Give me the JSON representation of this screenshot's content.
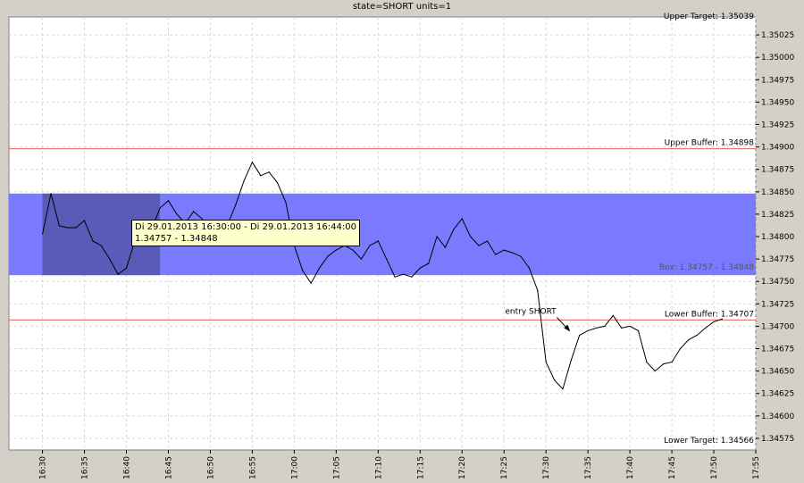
{
  "chart_data": {
    "type": "line",
    "title": "state=SHORT units=1",
    "x_ticks": [
      "16:30",
      "16:35",
      "16:40",
      "16:45",
      "16:50",
      "16:55",
      "17:00",
      "17:05",
      "17:10",
      "17:15",
      "17:20",
      "17:25",
      "17:30",
      "17:35",
      "17:40",
      "17:45",
      "17:50",
      "17:55"
    ],
    "y_ticks": [
      "1.34575",
      "1.34600",
      "1.34625",
      "1.34650",
      "1.34675",
      "1.34700",
      "1.34725",
      "1.34750",
      "1.34775",
      "1.34800",
      "1.34825",
      "1.34850",
      "1.34875",
      "1.34900",
      "1.34925",
      "1.34950",
      "1.34975",
      "1.35000",
      "1.35025"
    ],
    "xlim": [
      "16:26",
      "17:55"
    ],
    "ylim": [
      1.34562,
      1.35045
    ],
    "grid": true,
    "levels": [
      {
        "label": "Upper Target: 1.35039",
        "value": 1.35039,
        "color": "#000000"
      },
      {
        "label": "Upper Buffer: 1.34898",
        "value": 1.34898,
        "color": "#e06060"
      },
      {
        "label": "Lower Buffer: 1.34707",
        "value": 1.34707,
        "color": "#e06060"
      },
      {
        "label": "Lower Target: 1.34566",
        "value": 1.34566,
        "color": "#000000"
      }
    ],
    "box": {
      "label": "Box: 1.34757 - 1.34848",
      "low": 1.34757,
      "high": 1.34848,
      "color": "#7a7aff",
      "highlight_start": "16:30",
      "highlight_end": "16:44",
      "highlight_color": "#5a5ab8"
    },
    "tooltip": {
      "line1": "Di 29.01.2013 16:30:00 - Di 29.01.2013 16:44:00",
      "line2": "1.34757 - 1.34848"
    },
    "annotation": {
      "label": "entry SHORT",
      "x": "17:33",
      "y": 1.34692
    },
    "series": [
      {
        "color": "#000000",
        "points": [
          [
            "16:30",
            1.34803
          ],
          [
            "16:31",
            1.34848
          ],
          [
            "16:32",
            1.34812
          ],
          [
            "16:33",
            1.3481
          ],
          [
            "16:34",
            1.3481
          ],
          [
            "16:35",
            1.34818
          ],
          [
            "16:36",
            1.34795
          ],
          [
            "16:37",
            1.3479
          ],
          [
            "16:38",
            1.34775
          ],
          [
            "16:39",
            1.34758
          ],
          [
            "16:40",
            1.34765
          ],
          [
            "16:41",
            1.34795
          ],
          [
            "16:42",
            1.34815
          ],
          [
            "16:43",
            1.34808
          ],
          [
            "16:44",
            1.34832
          ],
          [
            "16:45",
            1.3484
          ],
          [
            "16:46",
            1.34825
          ],
          [
            "16:47",
            1.34815
          ],
          [
            "16:48",
            1.34828
          ],
          [
            "16:49",
            1.3482
          ],
          [
            "16:50",
            1.34805
          ],
          [
            "16:51",
            1.348
          ],
          [
            "16:52",
            1.34812
          ],
          [
            "16:53",
            1.34835
          ],
          [
            "16:54",
            1.34862
          ],
          [
            "16:55",
            1.34883
          ],
          [
            "16:56",
            1.34868
          ],
          [
            "16:57",
            1.34872
          ],
          [
            "16:58",
            1.3486
          ],
          [
            "16:59",
            1.34838
          ],
          [
            "17:00",
            1.3479
          ],
          [
            "17:01",
            1.34762
          ],
          [
            "17:02",
            1.34748
          ],
          [
            "17:03",
            1.34765
          ],
          [
            "17:04",
            1.34778
          ],
          [
            "17:05",
            1.34785
          ],
          [
            "17:06",
            1.3479
          ],
          [
            "17:07",
            1.34785
          ],
          [
            "17:08",
            1.34775
          ],
          [
            "17:09",
            1.3479
          ],
          [
            "17:10",
            1.34795
          ],
          [
            "17:11",
            1.34775
          ],
          [
            "17:12",
            1.34755
          ],
          [
            "17:13",
            1.34758
          ],
          [
            "17:14",
            1.34755
          ],
          [
            "17:15",
            1.34765
          ],
          [
            "17:16",
            1.3477
          ],
          [
            "17:17",
            1.348
          ],
          [
            "17:18",
            1.34788
          ],
          [
            "17:19",
            1.34808
          ],
          [
            "17:20",
            1.3482
          ],
          [
            "17:21",
            1.348
          ],
          [
            "17:22",
            1.3479
          ],
          [
            "17:23",
            1.34795
          ],
          [
            "17:24",
            1.3478
          ],
          [
            "17:25",
            1.34785
          ],
          [
            "17:26",
            1.34782
          ],
          [
            "17:27",
            1.34778
          ],
          [
            "17:28",
            1.34765
          ],
          [
            "17:29",
            1.3474
          ],
          [
            "17:30",
            1.3466
          ],
          [
            "17:31",
            1.3464
          ],
          [
            "17:32",
            1.3463
          ],
          [
            "17:33",
            1.34662
          ],
          [
            "17:34",
            1.3469
          ],
          [
            "17:35",
            1.34695
          ],
          [
            "17:36",
            1.34698
          ],
          [
            "17:37",
            1.347
          ],
          [
            "17:38",
            1.34712
          ],
          [
            "17:39",
            1.34698
          ],
          [
            "17:40",
            1.347
          ],
          [
            "17:41",
            1.34695
          ],
          [
            "17:42",
            1.3466
          ],
          [
            "17:43",
            1.3465
          ],
          [
            "17:44",
            1.34658
          ],
          [
            "17:45",
            1.3466
          ],
          [
            "17:46",
            1.34675
          ],
          [
            "17:47",
            1.34685
          ],
          [
            "17:48",
            1.3469
          ],
          [
            "17:49",
            1.34698
          ],
          [
            "17:50",
            1.34705
          ],
          [
            "17:51",
            1.34708
          ]
        ]
      }
    ]
  }
}
